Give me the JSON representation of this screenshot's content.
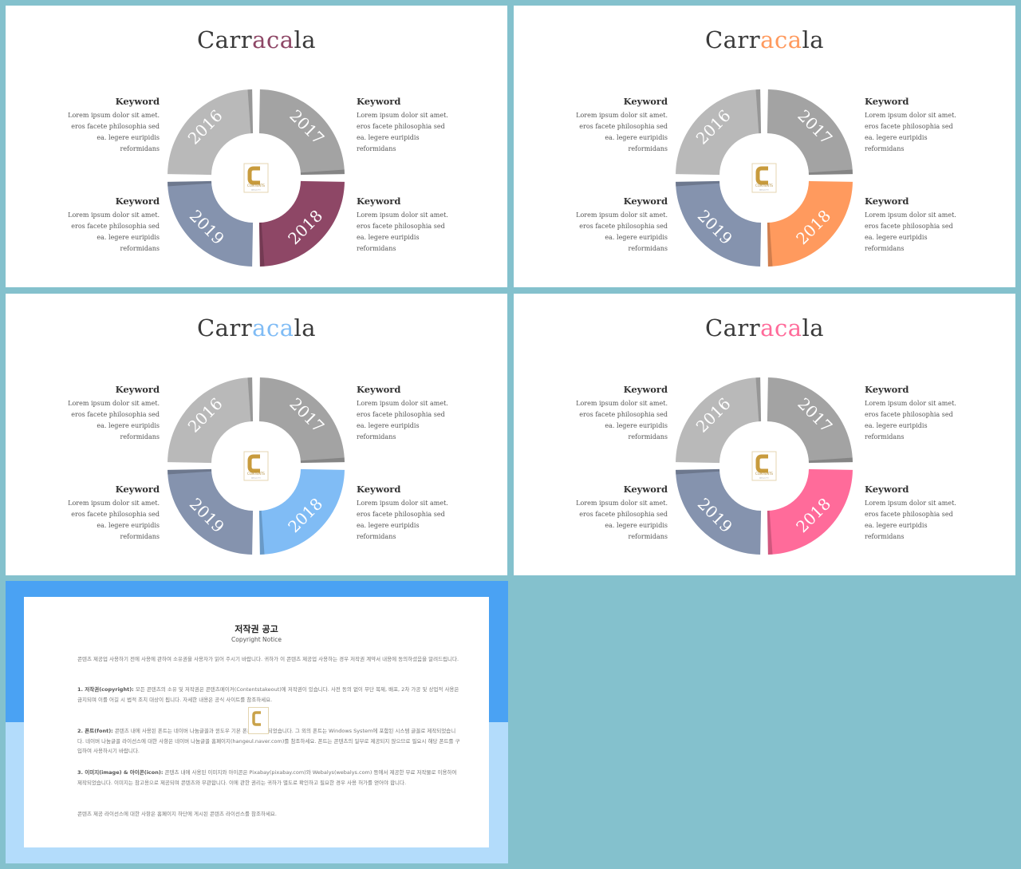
{
  "slides": [
    {
      "accent": "#8e4766",
      "title_pre": "Carr",
      "title_acc": "aca",
      "title_post": "la"
    },
    {
      "accent": "#ff9a5e",
      "title_pre": "Carr",
      "title_acc": "aca",
      "title_post": "la"
    },
    {
      "accent": "#80bcf5",
      "title_pre": "Carr",
      "title_acc": "aca",
      "title_post": "la"
    },
    {
      "accent": "#ff6b9a",
      "title_pre": "Carr",
      "title_acc": "aca",
      "title_post": "la"
    }
  ],
  "keyword": {
    "title": "Keyword",
    "lines": [
      "Lorem ipsum dolor sit amet.",
      "eros facete philosophia sed",
      "ea. legere euripidis",
      "reformidans"
    ]
  },
  "years": [
    "2016",
    "2017",
    "2018",
    "2019"
  ],
  "badge": {
    "letter": "C",
    "line1": "CONTENTS",
    "line2": "BEAUTY"
  },
  "copyright": {
    "title": "저작권 공고",
    "subtitle": "Copyright Notice",
    "p0": "콘텐츠 제공업 사용하기 전에 사용에 관하여 소유권을 사용자가 읽어 주시기 바랍니다. 귀하가 이 콘텐츠 제공업 사용하는 경우 저작권 계약서 내용에 동의하셨음을 알려드립니다.",
    "p1_head": "1. 저작권(copyright):",
    "p1": "모든 콘텐츠의 소유 및 저작권은 콘텐츠메이커(Contentstakeout)에 저작권이 있습니다. 사전 동의 없이 무단 복제, 배포, 2차 가공 및 상업적 사용은 금지되며 이를 어길 시 법적 조치 대상이 됩니다. 자세한 내용은 공식 사이트를 참조하세요.",
    "p2_head": "2. 폰트(font):",
    "p2": "콘텐츠 내에 사용된 폰트는 네이버 나눔글꼴과 윈도우 기본 폰트로 제작되었습니다. 그 외의 폰트는 Windows System에 포함된 시스템 글꼴로 제작되었습니다. 네이버 나눔글꼴 라이선스에 대한 사항은 네이버 나눔글꼴 홈페이지(hangeul.naver.com)를 참조하세요. 폰트는 콘텐츠의 일부로 제공되지 않으므로 필요시 해당 폰트를 구입하여 사용하시기 바랍니다.",
    "p3_head": "3. 이미지(image) & 아이콘(icon):",
    "p3": "콘텐츠 내에 사용된 이미지와 아이콘은 Pixabay(pixabay.com)와 Webalys(webalys.com) 등에서 제공한 무료 저작물로 이용하여 제작되었습니다. 이미지는 참고용으로 제공되며 콘텐츠와 무관합니다. 이에 관한 권리는 귀하가 별도로 확인하고 필요한 경우 사용 허가를 얻어야 합니다.",
    "p4": "콘텐츠 제공 라이선스에 대한 사항은 홈페이지 하단에 게시된 콘텐츠 라이선스를 참조하세요."
  }
}
